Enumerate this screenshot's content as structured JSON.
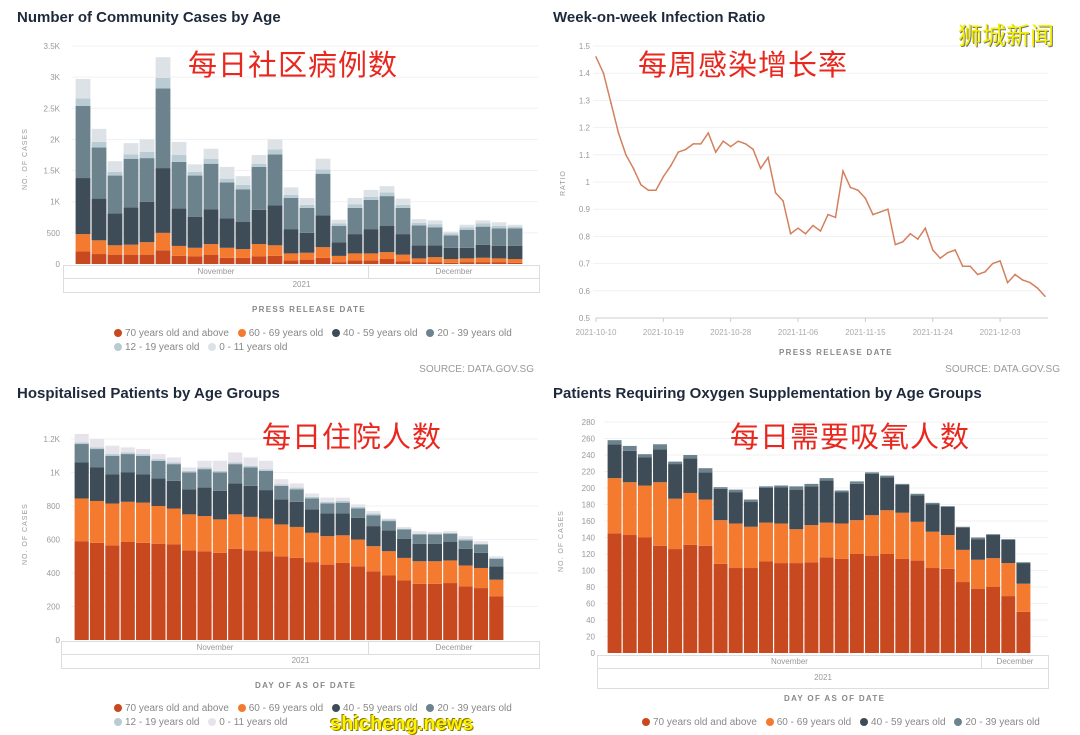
{
  "watermarks": {
    "top_right": "狮城新闻",
    "bottom_left": "shicheng.news"
  },
  "overlays": [
    "每日社区病例数",
    "每周感染增长率",
    "每日住院人数",
    "每日需要吸氧人数"
  ],
  "source": "SOURCE: DATA.GOV.SG",
  "chart_data": [
    {
      "type": "bar",
      "stacked": true,
      "title": "Number of Community Cases by Age",
      "ylabel": "NO. OF CASES",
      "xlabel": "PRESS RELEASE DATE",
      "ylim": [
        0,
        3500
      ],
      "yticks": [
        "0",
        "500",
        "1K",
        "1.5K",
        "2K",
        "2.5K",
        "3K",
        "3.5K"
      ],
      "months": [
        "November",
        "December"
      ],
      "year": "2021",
      "legend": "bottom",
      "series": [
        {
          "name": "70 years old and above",
          "color": "#c8481f",
          "values": [
            200,
            160,
            150,
            150,
            150,
            220,
            130,
            120,
            150,
            100,
            100,
            120,
            130,
            60,
            70,
            100,
            30,
            60,
            60,
            80,
            40,
            30,
            30,
            20,
            30,
            30,
            30,
            20
          ]
        },
        {
          "name": "60 - 69 years old",
          "color": "#f37a2f",
          "values": [
            280,
            220,
            150,
            160,
            200,
            280,
            160,
            140,
            170,
            160,
            140,
            200,
            170,
            110,
            110,
            170,
            100,
            110,
            110,
            110,
            110,
            60,
            80,
            60,
            60,
            70,
            60,
            60
          ]
        },
        {
          "name": "40 - 59 years old",
          "color": "#3d4c57",
          "values": [
            900,
            670,
            510,
            600,
            650,
            1040,
            600,
            500,
            560,
            470,
            440,
            550,
            640,
            390,
            320,
            510,
            220,
            310,
            390,
            420,
            330,
            210,
            190,
            180,
            170,
            210,
            200,
            210
          ]
        },
        {
          "name": "20 - 39 years old",
          "color": "#6c838e",
          "values": [
            1160,
            820,
            610,
            780,
            700,
            1280,
            750,
            660,
            730,
            580,
            520,
            690,
            820,
            500,
            400,
            670,
            260,
            420,
            470,
            480,
            420,
            320,
            290,
            200,
            290,
            290,
            280,
            280
          ]
        },
        {
          "name": "12 - 19 years old",
          "color": "#b9ccd4",
          "values": [
            120,
            90,
            60,
            70,
            100,
            170,
            110,
            60,
            80,
            60,
            70,
            50,
            80,
            50,
            50,
            70,
            40,
            60,
            50,
            60,
            50,
            40,
            50,
            30,
            40,
            50,
            40,
            30
          ]
        },
        {
          "name": "0 - 11 years old",
          "color": "#dde2e6",
          "values": [
            310,
            210,
            170,
            180,
            200,
            330,
            210,
            120,
            160,
            190,
            140,
            140,
            160,
            120,
            110,
            170,
            60,
            100,
            110,
            100,
            100,
            60,
            60,
            30,
            40,
            50,
            60,
            30
          ]
        }
      ]
    },
    {
      "type": "line",
      "title": "Week-on-week Infection Ratio",
      "ylabel": "RATIO",
      "xlabel": "PRESS RELEASE DATE",
      "ylim": [
        0.5,
        1.5
      ],
      "yticks": [
        "0.5",
        "0.6",
        "0.7",
        "0.8",
        "0.9",
        "1",
        "1.1",
        "1.2",
        "1.3",
        "1.4",
        "1.5"
      ],
      "xticks": [
        "2021-10-10",
        "2021-10-19",
        "2021-10-28",
        "2021-11-06",
        "2021-11-15",
        "2021-11-24",
        "2021-12-03"
      ],
      "color": "#d4805e",
      "x": [
        "2021-10-10",
        "2021-10-11",
        "2021-10-12",
        "2021-10-13",
        "2021-10-14",
        "2021-10-15",
        "2021-10-16",
        "2021-10-17",
        "2021-10-18",
        "2021-10-19",
        "2021-10-20",
        "2021-10-21",
        "2021-10-22",
        "2021-10-23",
        "2021-10-24",
        "2021-10-25",
        "2021-10-26",
        "2021-10-27",
        "2021-10-28",
        "2021-10-29",
        "2021-10-30",
        "2021-10-31",
        "2021-11-01",
        "2021-11-02",
        "2021-11-03",
        "2021-11-04",
        "2021-11-05",
        "2021-11-06",
        "2021-11-07",
        "2021-11-08",
        "2021-11-09",
        "2021-11-10",
        "2021-11-11",
        "2021-11-12",
        "2021-11-13",
        "2021-11-14",
        "2021-11-15",
        "2021-11-16",
        "2021-11-17",
        "2021-11-18",
        "2021-11-19",
        "2021-11-20",
        "2021-11-21",
        "2021-11-22",
        "2021-11-23",
        "2021-11-24",
        "2021-11-25",
        "2021-11-26",
        "2021-11-27",
        "2021-11-28",
        "2021-11-29",
        "2021-11-30",
        "2021-12-01",
        "2021-12-02",
        "2021-12-03",
        "2021-12-04",
        "2021-12-05",
        "2021-12-06",
        "2021-12-07",
        "2021-12-08",
        "2021-12-09"
      ],
      "y": [
        1.46,
        1.4,
        1.29,
        1.18,
        1.1,
        1.05,
        0.99,
        0.97,
        0.97,
        1.02,
        1.06,
        1.11,
        1.12,
        1.14,
        1.14,
        1.18,
        1.11,
        1.15,
        1.13,
        1.15,
        1.14,
        1.12,
        1.05,
        1.09,
        0.96,
        0.93,
        0.81,
        0.83,
        0.81,
        0.84,
        0.82,
        0.88,
        0.87,
        1.04,
        0.98,
        0.97,
        0.94,
        0.88,
        0.89,
        0.9,
        0.77,
        0.78,
        0.81,
        0.79,
        0.83,
        0.75,
        0.72,
        0.74,
        0.75,
        0.69,
        0.69,
        0.66,
        0.67,
        0.7,
        0.71,
        0.63,
        0.66,
        0.64,
        0.63,
        0.61,
        0.58
      ]
    },
    {
      "type": "bar",
      "stacked": true,
      "title": "Hospitalised Patients by Age Groups",
      "ylabel": "NO. OF CASES",
      "xlabel": "DAY OF AS OF DATE",
      "ylim": [
        0,
        1200
      ],
      "yticks": [
        "0",
        "200",
        "400",
        "600",
        "800",
        "1K",
        "1.2K"
      ],
      "months": [
        "November",
        "December"
      ],
      "year": "2021",
      "legend": "bottom",
      "series": [
        {
          "name": "70 years old and above",
          "color": "#c8481f",
          "values": [
            590,
            580,
            565,
            585,
            580,
            575,
            570,
            535,
            530,
            520,
            545,
            535,
            530,
            500,
            490,
            465,
            450,
            460,
            440,
            410,
            385,
            355,
            335,
            335,
            340,
            320,
            310,
            260
          ]
        },
        {
          "name": "60 - 69 years old",
          "color": "#f37a2f",
          "values": [
            255,
            250,
            250,
            240,
            240,
            225,
            215,
            215,
            210,
            200,
            205,
            200,
            195,
            190,
            185,
            175,
            170,
            165,
            160,
            150,
            145,
            135,
            135,
            135,
            135,
            125,
            120,
            100
          ]
        },
        {
          "name": "40 - 59 years old",
          "color": "#3d4c57",
          "values": [
            215,
            200,
            175,
            175,
            170,
            165,
            165,
            150,
            170,
            170,
            185,
            185,
            170,
            150,
            150,
            140,
            135,
            130,
            130,
            120,
            125,
            115,
            105,
            105,
            110,
            100,
            90,
            80
          ]
        },
        {
          "name": "20 - 39 years old",
          "color": "#6c838e",
          "values": [
            110,
            110,
            110,
            110,
            110,
            105,
            100,
            100,
            110,
            110,
            115,
            110,
            115,
            80,
            75,
            65,
            60,
            65,
            55,
            65,
            55,
            55,
            55,
            55,
            50,
            50,
            50,
            45
          ]
        },
        {
          "name": "12 - 19 years old",
          "color": "#b9ccd4",
          "values": [
            10,
            10,
            10,
            10,
            10,
            10,
            10,
            10,
            10,
            10,
            10,
            10,
            10,
            10,
            10,
            10,
            10,
            10,
            10,
            10,
            10,
            5,
            5,
            5,
            5,
            10,
            5,
            5
          ]
        },
        {
          "name": "0 - 11 years old",
          "color": "#e6e4ea",
          "values": [
            50,
            50,
            50,
            30,
            30,
            30,
            30,
            20,
            40,
            60,
            60,
            50,
            50,
            30,
            25,
            20,
            25,
            20,
            15,
            15,
            5,
            10,
            15,
            10,
            10,
            15,
            15,
            10
          ]
        }
      ]
    },
    {
      "type": "bar",
      "stacked": true,
      "title": "Patients Requiring Oxygen Supplementation by Age Groups",
      "ylabel": "NO. OF CASES",
      "xlabel": "DAY OF AS OF DATE",
      "ylim": [
        0,
        280
      ],
      "yticks": [
        "0",
        "20",
        "40",
        "60",
        "80",
        "100",
        "120",
        "140",
        "160",
        "180",
        "200",
        "220",
        "240",
        "260",
        "280"
      ],
      "months": [
        "November",
        "December"
      ],
      "year": "2021",
      "legend": "bottom",
      "series": [
        {
          "name": "70 years old and above",
          "color": "#c8481f",
          "values": [
            145,
            143,
            140,
            130,
            126,
            131,
            130,
            108,
            103,
            103,
            111,
            109,
            109,
            110,
            116,
            114,
            120,
            118,
            120,
            114,
            112,
            103,
            102,
            86,
            78,
            80,
            69,
            50
          ]
        },
        {
          "name": "60 - 69 years old",
          "color": "#f37a2f",
          "values": [
            67,
            64,
            63,
            77,
            61,
            63,
            56,
            53,
            54,
            50,
            47,
            48,
            41,
            45,
            42,
            43,
            41,
            49,
            53,
            56,
            47,
            44,
            41,
            39,
            35,
            35,
            40,
            34
          ]
        },
        {
          "name": "40 - 59 years old",
          "color": "#3d4c57",
          "values": [
            41,
            38,
            34,
            40,
            42,
            42,
            33,
            38,
            38,
            30,
            42,
            44,
            48,
            47,
            51,
            38,
            44,
            50,
            40,
            34,
            32,
            33,
            34,
            27,
            25,
            28,
            28,
            25
          ]
        },
        {
          "name": "20 - 39 years old",
          "color": "#6c838e",
          "values": [
            5,
            6,
            4,
            6,
            3,
            4,
            5,
            2,
            3,
            3,
            2,
            2,
            4,
            3,
            3,
            2,
            3,
            2,
            2,
            1,
            2,
            2,
            1,
            1,
            2,
            1,
            1,
            1
          ]
        }
      ]
    }
  ]
}
